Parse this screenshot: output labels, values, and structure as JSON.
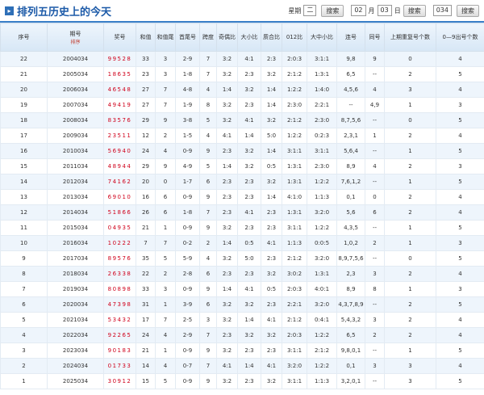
{
  "header": {
    "title": "排列五历史上的今天",
    "week_label": "星期",
    "week_value": "二",
    "month_value": "02",
    "month_label": "月",
    "day_value": "03",
    "day_label": "日",
    "issue_value": "034",
    "search_button": "搜索"
  },
  "table": {
    "columns": [
      "序号",
      "期号",
      "奖号",
      "和值",
      "和值尾",
      "首尾号",
      "跨度",
      "奇偶比",
      "大小比",
      "质合比",
      "012比",
      "大中小比",
      "连号",
      "同号",
      "上期重复号个数",
      "0—9出号个数"
    ],
    "sort_label": "排序",
    "rows": [
      [
        "22",
        "2004034",
        "99528",
        "33",
        "3",
        "2-9",
        "7",
        "3:2",
        "4:1",
        "2:3",
        "2:0:3",
        "3:1:1",
        "9,8",
        "9",
        "0",
        "4"
      ],
      [
        "21",
        "2005034",
        "18635",
        "23",
        "3",
        "1-8",
        "7",
        "3:2",
        "2:3",
        "3:2",
        "2:1:2",
        "1:3:1",
        "6,5",
        "--",
        "2",
        "5"
      ],
      [
        "20",
        "2006034",
        "46548",
        "27",
        "7",
        "4-8",
        "4",
        "1:4",
        "3:2",
        "1:4",
        "1:2:2",
        "1:4:0",
        "4,5,6",
        "4",
        "3",
        "4"
      ],
      [
        "19",
        "2007034",
        "49419",
        "27",
        "7",
        "1-9",
        "8",
        "3:2",
        "2:3",
        "1:4",
        "2:3:0",
        "2:2:1",
        "--",
        "4,9",
        "1",
        "3"
      ],
      [
        "18",
        "2008034",
        "83576",
        "29",
        "9",
        "3-8",
        "5",
        "3:2",
        "4:1",
        "3:2",
        "2:1:2",
        "2:3:0",
        "8,7,5,6",
        "--",
        "0",
        "5"
      ],
      [
        "17",
        "2009034",
        "23511",
        "12",
        "2",
        "1-5",
        "4",
        "4:1",
        "1:4",
        "5:0",
        "1:2:2",
        "0:2:3",
        "2,3,1",
        "1",
        "2",
        "4"
      ],
      [
        "16",
        "2010034",
        "56940",
        "24",
        "4",
        "0-9",
        "9",
        "2:3",
        "3:2",
        "1:4",
        "3:1:1",
        "3:1:1",
        "5,6,4",
        "--",
        "1",
        "5"
      ],
      [
        "15",
        "2011034",
        "48944",
        "29",
        "9",
        "4-9",
        "5",
        "1:4",
        "3:2",
        "0:5",
        "1:3:1",
        "2:3:0",
        "8,9",
        "4",
        "2",
        "3"
      ],
      [
        "14",
        "2012034",
        "74162",
        "20",
        "0",
        "1-7",
        "6",
        "2:3",
        "2:3",
        "3:2",
        "1:3:1",
        "1:2:2",
        "7,6,1,2",
        "--",
        "1",
        "5"
      ],
      [
        "13",
        "2013034",
        "69010",
        "16",
        "6",
        "0-9",
        "9",
        "2:3",
        "2:3",
        "1:4",
        "4:1:0",
        "1:1:3",
        "0,1",
        "0",
        "2",
        "4"
      ],
      [
        "12",
        "2014034",
        "51866",
        "26",
        "6",
        "1-8",
        "7",
        "2:3",
        "4:1",
        "2:3",
        "1:3:1",
        "3:2:0",
        "5,6",
        "6",
        "2",
        "4"
      ],
      [
        "11",
        "2015034",
        "04935",
        "21",
        "1",
        "0-9",
        "9",
        "3:2",
        "2:3",
        "2:3",
        "3:1:1",
        "1:2:2",
        "4,3,5",
        "--",
        "1",
        "5"
      ],
      [
        "10",
        "2016034",
        "10222",
        "7",
        "7",
        "0-2",
        "2",
        "1:4",
        "0:5",
        "4:1",
        "1:1:3",
        "0:0:5",
        "1,0,2",
        "2",
        "1",
        "3"
      ],
      [
        "9",
        "2017034",
        "89576",
        "35",
        "5",
        "5-9",
        "4",
        "3:2",
        "5:0",
        "2:3",
        "2:1:2",
        "3:2:0",
        "8,9,7,5,6",
        "--",
        "0",
        "5"
      ],
      [
        "8",
        "2018034",
        "26338",
        "22",
        "2",
        "2-8",
        "6",
        "2:3",
        "2:3",
        "3:2",
        "3:0:2",
        "1:3:1",
        "2,3",
        "3",
        "2",
        "4"
      ],
      [
        "7",
        "2019034",
        "80898",
        "33",
        "3",
        "0-9",
        "9",
        "1:4",
        "4:1",
        "0:5",
        "2:0:3",
        "4:0:1",
        "8,9",
        "8",
        "1",
        "3"
      ],
      [
        "6",
        "2020034",
        "47398",
        "31",
        "1",
        "3-9",
        "6",
        "3:2",
        "3:2",
        "2:3",
        "2:2:1",
        "3:2:0",
        "4,3,7,8,9",
        "--",
        "2",
        "5"
      ],
      [
        "5",
        "2021034",
        "53432",
        "17",
        "7",
        "2-5",
        "3",
        "3:2",
        "1:4",
        "4:1",
        "2:1:2",
        "0:4:1",
        "5,4,3,2",
        "3",
        "2",
        "4"
      ],
      [
        "4",
        "2022034",
        "92265",
        "24",
        "4",
        "2-9",
        "7",
        "2:3",
        "3:2",
        "3:2",
        "2:0:3",
        "1:2:2",
        "6,5",
        "2",
        "2",
        "4"
      ],
      [
        "3",
        "2023034",
        "90183",
        "21",
        "1",
        "0-9",
        "9",
        "3:2",
        "2:3",
        "2:3",
        "3:1:1",
        "2:1:2",
        "9,8,0,1",
        "--",
        "1",
        "5"
      ],
      [
        "2",
        "2024034",
        "01733",
        "14",
        "4",
        "0-7",
        "7",
        "4:1",
        "1:4",
        "4:1",
        "3:2:0",
        "1:2:2",
        "0,1",
        "3",
        "3",
        "4"
      ],
      [
        "1",
        "2025034",
        "30912",
        "15",
        "5",
        "0-9",
        "9",
        "3:2",
        "2:3",
        "3:2",
        "3:1:1",
        "1:1:3",
        "3,2,0,1",
        "--",
        "3",
        "5"
      ]
    ]
  }
}
